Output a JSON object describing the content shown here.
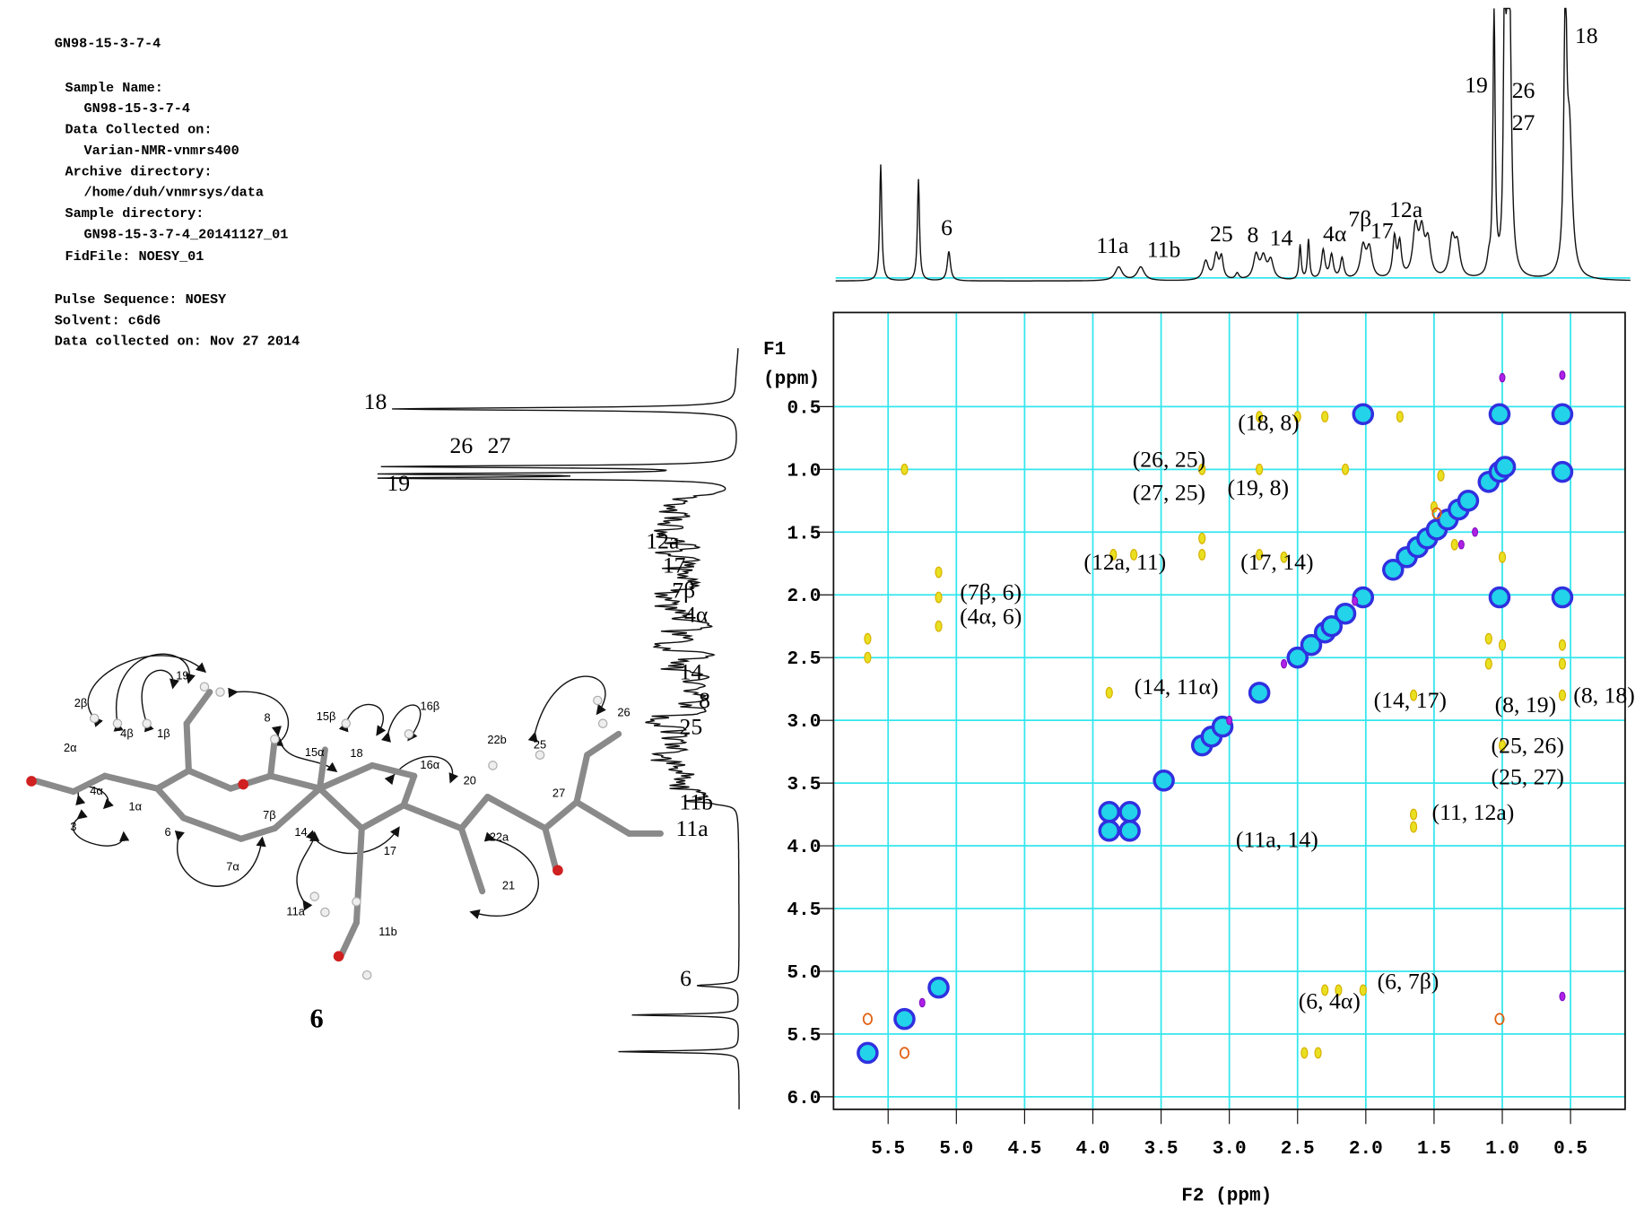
{
  "metadata": {
    "lines": [
      "GN98-15-3-7-4",
      "Sample Name:",
      "GN98-15-3-7-4",
      "Data Collected on:",
      "Varian-NMR-vnmrs400",
      "Archive directory:",
      "/home/duh/vnmrsys/data",
      "Sample directory:",
      "GN98-15-3-7-4_20141127_01",
      "FidFile: NOESY_01",
      "Pulse Sequence: NOESY",
      "Solvent: c6d6",
      "Data collected on: Nov 27 2014"
    ]
  },
  "chart_data": {
    "type": "scatter",
    "xlabel": "F2 (ppm)",
    "ylabel": "F1",
    "ylabel_unit": "(ppm)",
    "xlim": [
      5.9,
      0.1
    ],
    "ylim": [
      -0.25,
      6.1
    ],
    "xticks": [
      5.5,
      {
        "value": 5,
        "label": "5.0"
      },
      4.5,
      {
        "value": 4,
        "label": "4.0"
      },
      3.5,
      {
        "value": 3,
        "label": "3.0"
      },
      2.5,
      {
        "value": 2,
        "label": "2.0"
      },
      1.5,
      {
        "value": 1,
        "label": "1.0"
      },
      0.5
    ],
    "yticks": [
      0.5,
      {
        "value": 1,
        "label": "1.0"
      },
      1.5,
      {
        "value": 2,
        "label": "2.0"
      },
      2.5,
      {
        "value": 3,
        "label": "3.0"
      },
      3.5,
      {
        "value": 4,
        "label": "4.0"
      },
      4.5,
      {
        "value": 5,
        "label": "5.0"
      },
      5.5,
      {
        "value": 6,
        "label": "6.0"
      }
    ],
    "grid": true,
    "grid_color": "#33e6ee",
    "series": [
      {
        "color": "#22d3ea",
        "x": [
          5.65,
          5.38,
          5.13,
          3.88,
          3.73,
          3.48,
          3.2,
          3.13,
          3.05,
          2.78,
          2.5,
          2.4,
          2.3,
          2.25,
          2.15,
          2.02,
          1.8,
          1.7,
          1.62,
          1.55,
          1.48,
          1.4,
          1.32,
          1.25,
          1.1,
          1.02,
          0.98,
          0.56,
          2.02,
          1.02,
          0.56,
          1.02,
          0.56,
          3.73,
          3.88
        ],
        "values": [
          5.65,
          5.38,
          5.13,
          3.88,
          3.73,
          3.48,
          3.2,
          3.13,
          3.05,
          2.78,
          2.5,
          2.4,
          2.3,
          2.25,
          2.15,
          2.02,
          1.8,
          1.7,
          1.62,
          1.55,
          1.48,
          1.4,
          1.32,
          1.25,
          1.1,
          1.02,
          0.98,
          0.56,
          0.56,
          0.56,
          1.02,
          2.02,
          2.02,
          3.88,
          3.73
        ]
      },
      {
        "color": "#e8e020",
        "x": [
          5.13,
          5.13,
          5.13,
          5.65,
          5.65,
          5.38,
          3.88,
          3.85,
          3.7,
          3.2,
          3.2,
          3.2,
          2.78,
          2.78,
          2.78,
          2.5,
          2.3,
          2.15,
          1.75,
          1.65,
          1.65,
          1.65,
          1.1,
          1.1,
          1.0,
          1.0,
          1.0,
          0.56,
          0.56,
          0.56,
          2.3,
          2.2,
          2.02,
          2.45,
          2.35,
          1.5,
          1.45,
          1.35,
          2.6
        ],
        "values": [
          1.82,
          2.02,
          2.25,
          2.35,
          2.5,
          1.0,
          2.78,
          1.68,
          1.68,
          1.0,
          1.55,
          1.68,
          0.58,
          1.0,
          1.68,
          0.58,
          0.58,
          1.0,
          0.58,
          3.75,
          3.85,
          2.8,
          2.35,
          2.55,
          1.7,
          2.4,
          3.2,
          2.4,
          2.55,
          2.8,
          5.15,
          5.15,
          5.15,
          5.65,
          5.65,
          1.3,
          1.05,
          1.6,
          1.7
        ]
      },
      {
        "color": "#b020e8",
        "x": [
          1.0,
          0.56,
          0.56,
          2.08,
          1.2,
          1.3,
          2.6,
          3.0,
          5.25
        ],
        "values": [
          0.27,
          0.25,
          5.2,
          2.05,
          1.5,
          1.6,
          2.55,
          3.0,
          5.25
        ]
      },
      {
        "color": "#f08a20",
        "x": [
          5.65,
          5.38,
          1.48,
          1.02
        ],
        "values": [
          5.38,
          5.65,
          1.35,
          5.38
        ]
      }
    ],
    "annotations": [
      "(18, 8)",
      "(26, 25)",
      "(27, 25)",
      "(19, 8)",
      "(12a, 11)",
      "(17, 14)",
      "(7β, 6)",
      "(4α, 6)",
      "(14, 11α)",
      "(14, 17)",
      "(8, 19)",
      "(8, 18)",
      "(25, 26)",
      "(25, 27)",
      "(11, 12a)",
      "(11a, 14)",
      "(6, 7β)",
      "(6, 4α)"
    ],
    "top_projection_labels": [
      "6",
      "11a",
      "11b",
      "25",
      "8",
      "14",
      "4α",
      "7β",
      "17",
      "12a",
      "19",
      "26",
      "27",
      "18"
    ],
    "left_projection_labels": [
      "18",
      "26",
      "27",
      "19",
      "12a",
      "17",
      "7β",
      "4α",
      "14",
      "8",
      "25",
      "11b",
      "11a",
      "6"
    ]
  },
  "molecule": {
    "compound": "6",
    "atom_labels": [
      "2β",
      "4β",
      "1β",
      "19",
      "2α",
      "4α",
      "1α",
      "3",
      "6",
      "7β",
      "7α",
      "8",
      "14",
      "15β",
      "15α",
      "18",
      "16β",
      "16α",
      "20",
      "22b",
      "25",
      "26",
      "27",
      "17",
      "22a",
      "21",
      "11a",
      "11b"
    ]
  }
}
